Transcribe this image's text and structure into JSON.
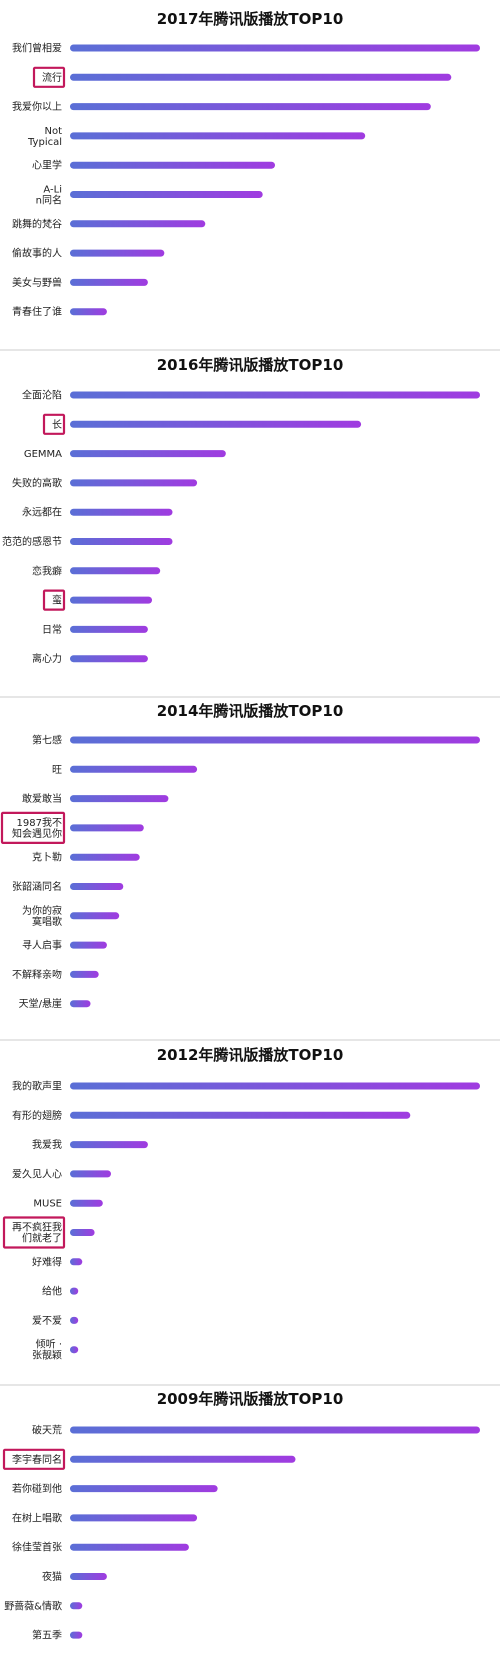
{
  "chart_data": [
    {
      "type": "bar",
      "title": "2017年腾讯版播放TOP10",
      "categories": [
        "我们曾相爱",
        "流行",
        "我爱你以上",
        "Not Typical",
        "心里学",
        "A-Lin同名",
        "跳舞的梵谷",
        "偷故事的人",
        "美女与野兽",
        "青春住了谁"
      ],
      "values": [
        100,
        93,
        88,
        72,
        50,
        47,
        33,
        23,
        19,
        9
      ],
      "highlighted": [
        "流行"
      ],
      "xlim": [
        0,
        100
      ]
    },
    {
      "type": "bar",
      "title": "2016年腾讯版播放TOP10",
      "categories": [
        "全面沦陷",
        "长",
        "GEMMA",
        "失败的高歌",
        "永远都在",
        "范范的感恩节",
        "恋我癖",
        "蛮",
        "日常",
        "离心力"
      ],
      "values": [
        100,
        71,
        38,
        31,
        25,
        25,
        22,
        20,
        19,
        19
      ],
      "highlighted": [
        "长",
        "蛮"
      ],
      "xlim": [
        0,
        100
      ]
    },
    {
      "type": "bar",
      "title": "2014年腾讯版播放TOP10",
      "categories": [
        "第七感",
        "旺",
        "敢爱敢当",
        "1987我不知会遇见你",
        "克卜勒",
        "张韶涵同名",
        "为你的寂寞唱歌",
        "寻人启事",
        "不解释亲吻",
        "天堂/悬崖"
      ],
      "values": [
        100,
        31,
        24,
        18,
        17,
        13,
        12,
        9,
        7,
        5
      ],
      "highlighted": [
        "1987我不知会遇见你"
      ],
      "xlim": [
        0,
        100
      ]
    },
    {
      "type": "bar",
      "title": "2012年腾讯版播放TOP10",
      "categories": [
        "我的歌声里",
        "有形的翅膀",
        "我爱我",
        "爱久见人心",
        "MUSE",
        "再不疯狂我们就老了",
        "好难得",
        "给他",
        "爱不爱",
        "倾听 · 张靓颖"
      ],
      "values": [
        100,
        83,
        19,
        10,
        8,
        6,
        3,
        2,
        2,
        2
      ],
      "highlighted": [
        "再不疯狂我们就老了"
      ],
      "xlim": [
        0,
        100
      ]
    },
    {
      "type": "bar",
      "title": "2009年腾讯版播放TOP10",
      "categories": [
        "破天荒",
        "李宇春同名",
        "若你碰到他",
        "在树上唱歌",
        "徐佳莹首张",
        "夜猫",
        "野蔷薇&情歌",
        "第五季"
      ],
      "values": [
        100,
        55,
        36,
        31,
        29,
        9,
        3,
        3
      ],
      "highlighted": [
        "李宇春同名"
      ],
      "xlim": [
        0,
        100
      ]
    }
  ],
  "colors": {
    "bar_start": "#5a6fd6",
    "bar_end": "#a03be0",
    "highlight_border": "#c2185b",
    "title": "#111111",
    "label": "#222222"
  }
}
